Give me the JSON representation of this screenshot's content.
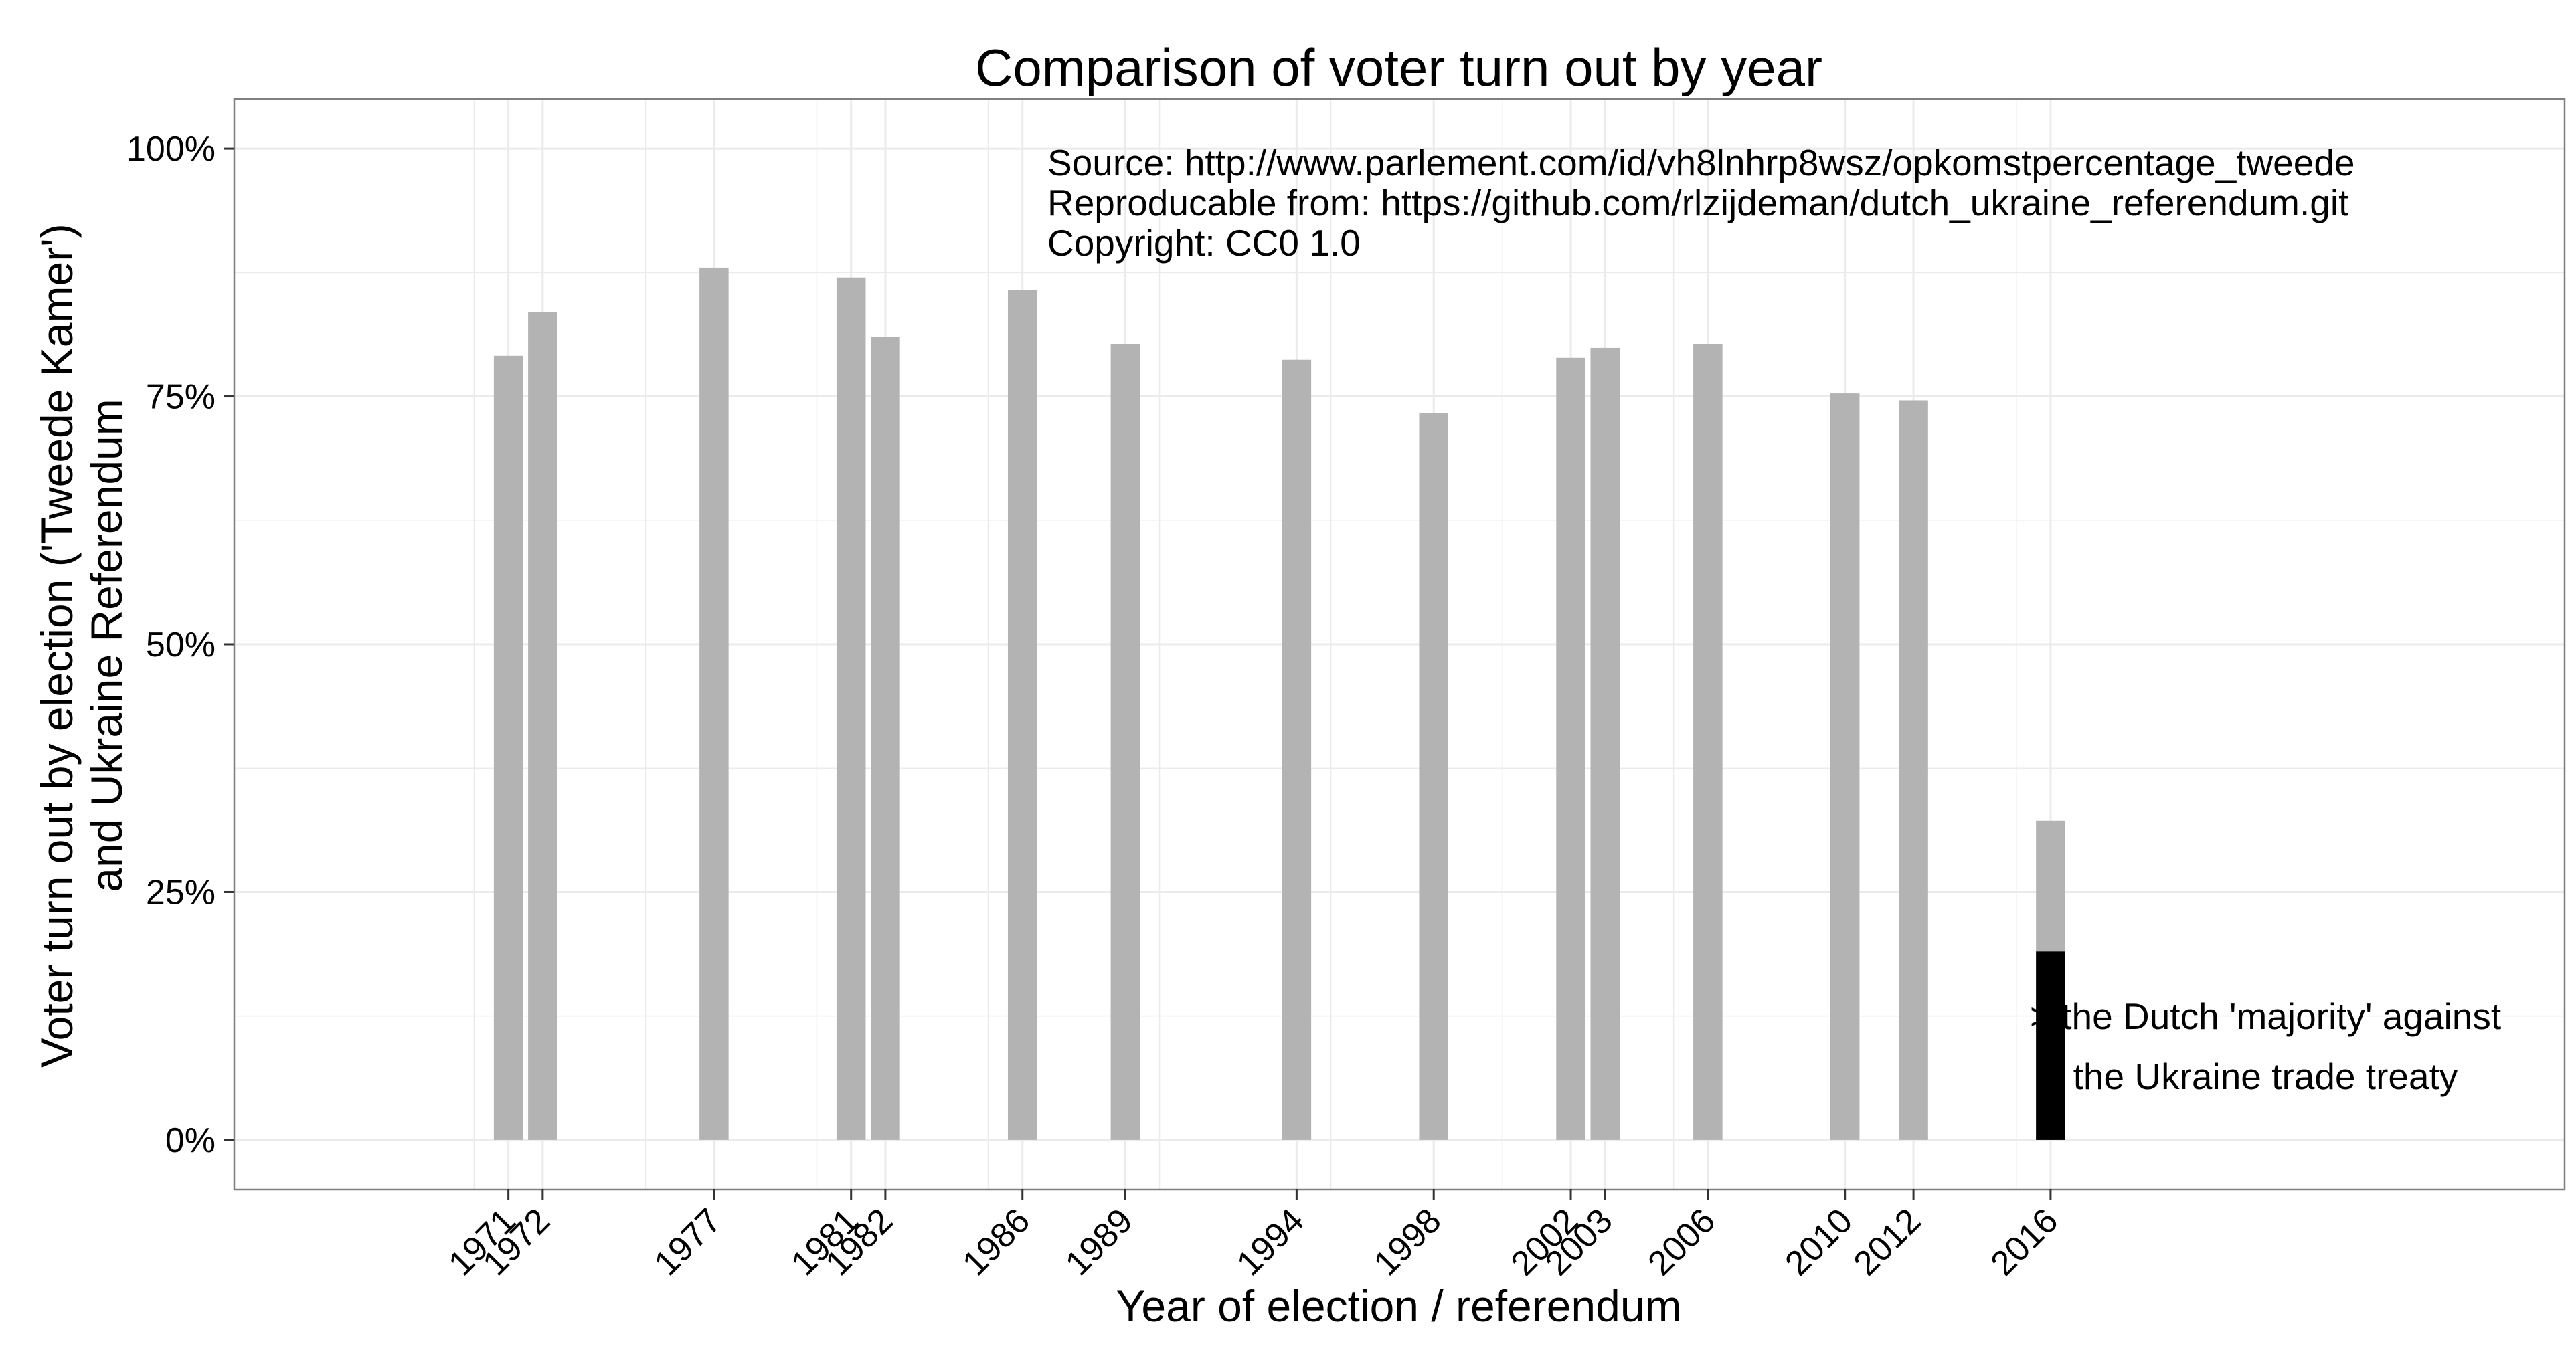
{
  "chart_data": {
    "type": "bar",
    "title": "Comparison of voter turn out by year",
    "xlabel": "Year of election / referendum",
    "ylabel_lines": [
      "Voter turn out by election ('Tweede Kamer')",
      "and Ukraine Referendum"
    ],
    "x_range": [
      1963,
      2031
    ],
    "ylim": [
      -0.05,
      1.05
    ],
    "yticks": [
      0,
      0.25,
      0.5,
      0.75,
      1.0
    ],
    "ytick_labels": [
      "0%",
      "25%",
      "50%",
      "75%",
      "100%"
    ],
    "x_minor_grid": [
      1970,
      1975,
      1980,
      1985,
      1990,
      1995,
      2000,
      2005,
      2010,
      2015
    ],
    "grid": true,
    "bar_width_years": 0.85,
    "colors": {
      "bar": "#b3b3b3",
      "highlight": "#000000",
      "grid": "#ebebeb",
      "frame": "#7f7f7f"
    },
    "categories": [
      "1971",
      "1972",
      "1977",
      "1981",
      "1982",
      "1986",
      "1989",
      "1994",
      "1998",
      "2002",
      "2003",
      "2006",
      "2010",
      "2012",
      "2016"
    ],
    "x": [
      1971,
      1972,
      1977,
      1981,
      1982,
      1986,
      1989,
      1994,
      1998,
      2002,
      2003,
      2006,
      2010,
      2012,
      2016
    ],
    "values": [
      0.791,
      0.835,
      0.88,
      0.87,
      0.81,
      0.857,
      0.803,
      0.787,
      0.733,
      0.789,
      0.799,
      0.803,
      0.753,
      0.746,
      0.322
    ],
    "highlight": {
      "x": 2016,
      "value": 0.19
    },
    "source_lines": [
      "Source: http://www.parlement.com/id/vh8lnhrp8wsz/opkomstpercentage_tweede",
      "Reproducable from: https://github.com/rlzijdeman/dutch_ukraine_referendum.git",
      "Copyright: CC0 1.0"
    ],
    "annotation_lines": [
      "> the Dutch 'majority' against",
      "the Ukraine trade treaty"
    ]
  }
}
